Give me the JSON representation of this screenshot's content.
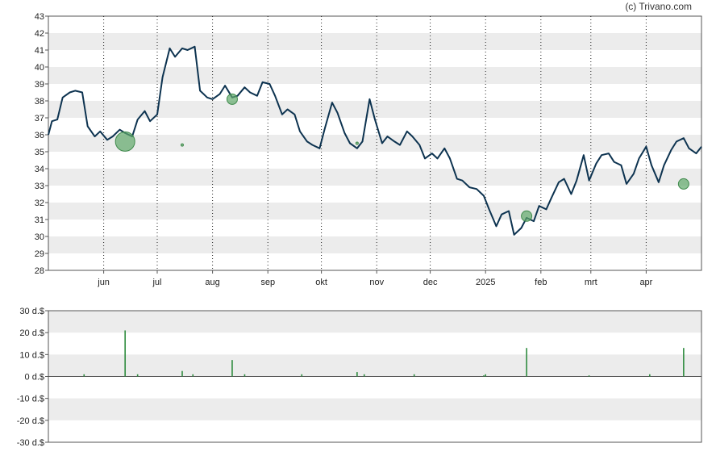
{
  "credit": "(c) Trivano.com",
  "chart_data": [
    {
      "type": "line",
      "name": "price",
      "ylim": [
        28,
        43
      ],
      "yticks": [
        28,
        29,
        30,
        31,
        32,
        33,
        34,
        35,
        36,
        37,
        38,
        39,
        40,
        41,
        42,
        43
      ],
      "x_months": [
        "jun",
        "jul",
        "aug",
        "sep",
        "okt",
        "nov",
        "dec",
        "2025",
        "feb",
        "mrt",
        "apr"
      ],
      "x_month_dates": [
        "2024-06-01",
        "2024-07-01",
        "2024-08-01",
        "2024-09-01",
        "2024-10-01",
        "2024-11-01",
        "2024-12-01",
        "2025-01-01",
        "2025-02-01",
        "2025-03-01",
        "2025-04-01"
      ],
      "x_range": [
        "2024-05-01",
        "2025-05-02"
      ],
      "grid": "alternating horizontal bands; dotted vertical lines at month starts",
      "line_color": "#0d3350",
      "series": [
        {
          "x": [
            "2024-05-01",
            "2024-05-03",
            "2024-05-06",
            "2024-05-09",
            "2024-05-13",
            "2024-05-16",
            "2024-05-20",
            "2024-05-23",
            "2024-05-27",
            "2024-05-30",
            "2024-06-03",
            "2024-06-06",
            "2024-06-10",
            "2024-06-13",
            "2024-06-17",
            "2024-06-20",
            "2024-06-24",
            "2024-06-27",
            "2024-07-01",
            "2024-07-04",
            "2024-07-08",
            "2024-07-11",
            "2024-07-15",
            "2024-07-18",
            "2024-07-22",
            "2024-07-25",
            "2024-07-29",
            "2024-08-01",
            "2024-08-05",
            "2024-08-08",
            "2024-08-12",
            "2024-08-15",
            "2024-08-19",
            "2024-08-22",
            "2024-08-26",
            "2024-08-29",
            "2024-09-02",
            "2024-09-05",
            "2024-09-09",
            "2024-09-12",
            "2024-09-16",
            "2024-09-19",
            "2024-09-23",
            "2024-09-26",
            "2024-09-30",
            "2024-10-03",
            "2024-10-07",
            "2024-10-10",
            "2024-10-14",
            "2024-10-17",
            "2024-10-21",
            "2024-10-24",
            "2024-10-28",
            "2024-10-31",
            "2024-11-04",
            "2024-11-07",
            "2024-11-11",
            "2024-11-14",
            "2024-11-18",
            "2024-11-21",
            "2024-11-25",
            "2024-11-28",
            "2024-12-02",
            "2024-12-05",
            "2024-12-09",
            "2024-12-12",
            "2024-12-16",
            "2024-12-19",
            "2024-12-23",
            "2024-12-27",
            "2024-12-31",
            "2025-01-03",
            "2025-01-07",
            "2025-01-10",
            "2025-01-14",
            "2025-01-17",
            "2025-01-21",
            "2025-01-24",
            "2025-01-28",
            "2025-01-31",
            "2025-02-04",
            "2025-02-07",
            "2025-02-11",
            "2025-02-14",
            "2025-02-18",
            "2025-02-21",
            "2025-02-25",
            "2025-02-28",
            "2025-03-04",
            "2025-03-07",
            "2025-03-11",
            "2025-03-14",
            "2025-03-18",
            "2025-03-21",
            "2025-03-25",
            "2025-03-28",
            "2025-04-01",
            "2025-04-04",
            "2025-04-08",
            "2025-04-11",
            "2025-04-15",
            "2025-04-18",
            "2025-04-22",
            "2025-04-25",
            "2025-04-29",
            "2025-05-02"
          ],
          "y": [
            36.0,
            36.8,
            36.9,
            38.2,
            38.5,
            38.6,
            38.5,
            36.5,
            35.9,
            36.2,
            35.7,
            35.9,
            36.3,
            36.1,
            35.9,
            36.9,
            37.4,
            36.8,
            37.2,
            39.4,
            41.1,
            40.6,
            41.1,
            41.0,
            41.2,
            38.6,
            38.2,
            38.1,
            38.4,
            38.9,
            38.2,
            38.3,
            38.8,
            38.5,
            38.3,
            39.1,
            39.0,
            38.3,
            37.2,
            37.5,
            37.2,
            36.2,
            35.6,
            35.4,
            35.2,
            36.4,
            37.9,
            37.3,
            36.1,
            35.5,
            35.2,
            35.6,
            38.1,
            36.9,
            35.5,
            35.9,
            35.6,
            35.4,
            36.2,
            35.9,
            35.4,
            34.6,
            34.9,
            34.6,
            35.2,
            34.6,
            33.4,
            33.3,
            32.9,
            32.8,
            32.4,
            31.6,
            30.6,
            31.3,
            31.5,
            30.1,
            30.5,
            31.1,
            30.9,
            31.8,
            31.6,
            32.3,
            33.2,
            33.4,
            32.5,
            33.3,
            34.8,
            33.3,
            34.3,
            34.8,
            34.9,
            34.4,
            34.2,
            33.1,
            33.7,
            34.6,
            35.3,
            34.2,
            33.2,
            34.2,
            35.1,
            35.6,
            35.8,
            35.2,
            34.9,
            35.3
          ]
        }
      ],
      "markers": [
        {
          "x": "2024-06-13",
          "y": 35.6,
          "size": "large"
        },
        {
          "x": "2024-07-15",
          "y": 35.4,
          "size": "tiny"
        },
        {
          "x": "2024-08-12",
          "y": 38.1,
          "size": "small"
        },
        {
          "x": "2024-10-21",
          "y": 35.5,
          "size": "tiny"
        },
        {
          "x": "2025-01-24",
          "y": 31.2,
          "size": "small"
        },
        {
          "x": "2025-04-22",
          "y": 33.1,
          "size": "small"
        }
      ],
      "marker_color": "#5fa86a"
    },
    {
      "type": "bar",
      "name": "dividends",
      "ylim": [
        -30,
        30
      ],
      "yticks": [
        -30,
        -20,
        -10,
        0,
        10,
        20,
        30
      ],
      "ytick_labels": [
        "-30 d.$",
        "-20 d.$",
        "-10 d.$",
        "0 d.$",
        "10 d.$",
        "20 d.$",
        "30 d.$"
      ],
      "bar_color": "#2e8b3e",
      "bars": [
        {
          "x": "2024-05-21",
          "value": 1
        },
        {
          "x": "2024-06-13",
          "value": 21
        },
        {
          "x": "2024-06-20",
          "value": 1
        },
        {
          "x": "2024-07-15",
          "value": 2.5
        },
        {
          "x": "2024-07-21",
          "value": 1
        },
        {
          "x": "2024-08-12",
          "value": 7.5
        },
        {
          "x": "2024-08-19",
          "value": 1
        },
        {
          "x": "2024-09-20",
          "value": 1
        },
        {
          "x": "2024-10-21",
          "value": 2
        },
        {
          "x": "2024-10-25",
          "value": 1
        },
        {
          "x": "2024-11-22",
          "value": 1
        },
        {
          "x": "2024-12-31",
          "value": 0.5
        },
        {
          "x": "2025-01-01",
          "value": 1
        },
        {
          "x": "2025-01-24",
          "value": 13
        },
        {
          "x": "2025-02-28",
          "value": 0.5
        },
        {
          "x": "2025-04-03",
          "value": 1
        },
        {
          "x": "2025-04-22",
          "value": 13
        }
      ]
    }
  ]
}
